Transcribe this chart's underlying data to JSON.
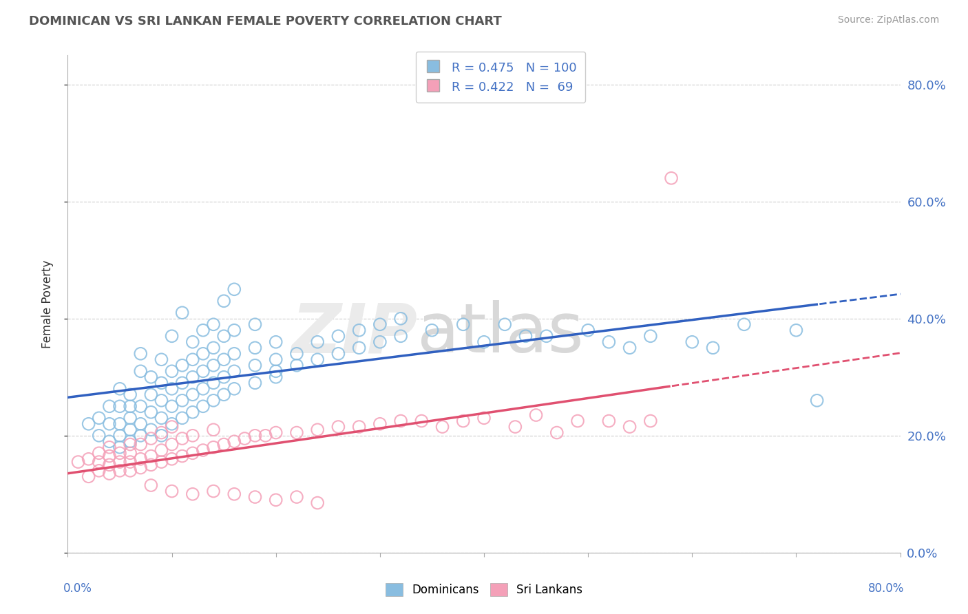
{
  "title": "DOMINICAN VS SRI LANKAN FEMALE POVERTY CORRELATION CHART",
  "source": "Source: ZipAtlas.com",
  "ylabel": "Female Poverty",
  "xlim": [
    0.0,
    0.8
  ],
  "ylim": [
    0.0,
    0.85
  ],
  "dominican_R": 0.475,
  "dominican_N": 100,
  "srilankan_R": 0.422,
  "srilankan_N": 69,
  "dominican_color": "#89bde0",
  "srilankan_color": "#f4a0b8",
  "dominican_line_color": "#3060c0",
  "srilankan_line_color": "#e05070",
  "background_color": "#ffffff",
  "grid_color": "#cccccc",
  "ytick_positions": [
    0.0,
    0.2,
    0.4,
    0.6,
    0.8
  ],
  "ytick_labels_right": [
    "0.0%",
    "20.0%",
    "40.0%",
    "60.0%",
    "80.0%"
  ],
  "dominican_scatter": [
    [
      0.02,
      0.22
    ],
    [
      0.03,
      0.2
    ],
    [
      0.03,
      0.23
    ],
    [
      0.04,
      0.19
    ],
    [
      0.04,
      0.22
    ],
    [
      0.04,
      0.25
    ],
    [
      0.05,
      0.18
    ],
    [
      0.05,
      0.2
    ],
    [
      0.05,
      0.22
    ],
    [
      0.05,
      0.25
    ],
    [
      0.05,
      0.28
    ],
    [
      0.06,
      0.19
    ],
    [
      0.06,
      0.21
    ],
    [
      0.06,
      0.23
    ],
    [
      0.06,
      0.25
    ],
    [
      0.06,
      0.27
    ],
    [
      0.07,
      0.2
    ],
    [
      0.07,
      0.22
    ],
    [
      0.07,
      0.25
    ],
    [
      0.07,
      0.31
    ],
    [
      0.07,
      0.34
    ],
    [
      0.08,
      0.21
    ],
    [
      0.08,
      0.24
    ],
    [
      0.08,
      0.27
    ],
    [
      0.08,
      0.3
    ],
    [
      0.09,
      0.2
    ],
    [
      0.09,
      0.23
    ],
    [
      0.09,
      0.26
    ],
    [
      0.09,
      0.29
    ],
    [
      0.09,
      0.33
    ],
    [
      0.1,
      0.22
    ],
    [
      0.1,
      0.25
    ],
    [
      0.1,
      0.28
    ],
    [
      0.1,
      0.31
    ],
    [
      0.1,
      0.37
    ],
    [
      0.11,
      0.23
    ],
    [
      0.11,
      0.26
    ],
    [
      0.11,
      0.29
    ],
    [
      0.11,
      0.32
    ],
    [
      0.11,
      0.41
    ],
    [
      0.12,
      0.24
    ],
    [
      0.12,
      0.27
    ],
    [
      0.12,
      0.3
    ],
    [
      0.12,
      0.33
    ],
    [
      0.12,
      0.36
    ],
    [
      0.13,
      0.25
    ],
    [
      0.13,
      0.28
    ],
    [
      0.13,
      0.31
    ],
    [
      0.13,
      0.34
    ],
    [
      0.13,
      0.38
    ],
    [
      0.14,
      0.26
    ],
    [
      0.14,
      0.29
    ],
    [
      0.14,
      0.32
    ],
    [
      0.14,
      0.35
    ],
    [
      0.14,
      0.39
    ],
    [
      0.15,
      0.27
    ],
    [
      0.15,
      0.3
    ],
    [
      0.15,
      0.33
    ],
    [
      0.15,
      0.37
    ],
    [
      0.15,
      0.43
    ],
    [
      0.16,
      0.28
    ],
    [
      0.16,
      0.31
    ],
    [
      0.16,
      0.34
    ],
    [
      0.16,
      0.38
    ],
    [
      0.16,
      0.45
    ],
    [
      0.18,
      0.29
    ],
    [
      0.18,
      0.32
    ],
    [
      0.18,
      0.35
    ],
    [
      0.18,
      0.39
    ],
    [
      0.2,
      0.3
    ],
    [
      0.2,
      0.33
    ],
    [
      0.2,
      0.36
    ],
    [
      0.2,
      0.31
    ],
    [
      0.22,
      0.32
    ],
    [
      0.22,
      0.34
    ],
    [
      0.24,
      0.33
    ],
    [
      0.24,
      0.36
    ],
    [
      0.26,
      0.34
    ],
    [
      0.26,
      0.37
    ],
    [
      0.28,
      0.35
    ],
    [
      0.28,
      0.38
    ],
    [
      0.3,
      0.36
    ],
    [
      0.3,
      0.39
    ],
    [
      0.32,
      0.37
    ],
    [
      0.32,
      0.4
    ],
    [
      0.35,
      0.38
    ],
    [
      0.38,
      0.39
    ],
    [
      0.4,
      0.36
    ],
    [
      0.42,
      0.39
    ],
    [
      0.44,
      0.37
    ],
    [
      0.46,
      0.37
    ],
    [
      0.5,
      0.38
    ],
    [
      0.52,
      0.36
    ],
    [
      0.54,
      0.35
    ],
    [
      0.56,
      0.37
    ],
    [
      0.6,
      0.36
    ],
    [
      0.62,
      0.35
    ],
    [
      0.65,
      0.39
    ],
    [
      0.7,
      0.38
    ],
    [
      0.72,
      0.26
    ]
  ],
  "srilankan_scatter": [
    [
      0.01,
      0.155
    ],
    [
      0.02,
      0.13
    ],
    [
      0.02,
      0.16
    ],
    [
      0.03,
      0.14
    ],
    [
      0.03,
      0.155
    ],
    [
      0.03,
      0.17
    ],
    [
      0.04,
      0.135
    ],
    [
      0.04,
      0.15
    ],
    [
      0.04,
      0.165
    ],
    [
      0.04,
      0.18
    ],
    [
      0.05,
      0.14
    ],
    [
      0.05,
      0.155
    ],
    [
      0.05,
      0.17
    ],
    [
      0.06,
      0.14
    ],
    [
      0.06,
      0.155
    ],
    [
      0.06,
      0.17
    ],
    [
      0.06,
      0.185
    ],
    [
      0.07,
      0.145
    ],
    [
      0.07,
      0.16
    ],
    [
      0.07,
      0.185
    ],
    [
      0.08,
      0.15
    ],
    [
      0.08,
      0.165
    ],
    [
      0.08,
      0.195
    ],
    [
      0.09,
      0.155
    ],
    [
      0.09,
      0.175
    ],
    [
      0.09,
      0.205
    ],
    [
      0.1,
      0.16
    ],
    [
      0.1,
      0.185
    ],
    [
      0.1,
      0.215
    ],
    [
      0.11,
      0.165
    ],
    [
      0.11,
      0.195
    ],
    [
      0.12,
      0.17
    ],
    [
      0.12,
      0.2
    ],
    [
      0.13,
      0.175
    ],
    [
      0.14,
      0.18
    ],
    [
      0.14,
      0.21
    ],
    [
      0.15,
      0.185
    ],
    [
      0.16,
      0.19
    ],
    [
      0.17,
      0.195
    ],
    [
      0.18,
      0.2
    ],
    [
      0.19,
      0.2
    ],
    [
      0.2,
      0.205
    ],
    [
      0.22,
      0.205
    ],
    [
      0.24,
      0.21
    ],
    [
      0.26,
      0.215
    ],
    [
      0.28,
      0.215
    ],
    [
      0.3,
      0.22
    ],
    [
      0.32,
      0.225
    ],
    [
      0.34,
      0.225
    ],
    [
      0.36,
      0.215
    ],
    [
      0.38,
      0.225
    ],
    [
      0.4,
      0.23
    ],
    [
      0.43,
      0.215
    ],
    [
      0.45,
      0.235
    ],
    [
      0.47,
      0.205
    ],
    [
      0.49,
      0.225
    ],
    [
      0.52,
      0.225
    ],
    [
      0.54,
      0.215
    ],
    [
      0.56,
      0.225
    ],
    [
      0.58,
      0.64
    ],
    [
      0.08,
      0.115
    ],
    [
      0.1,
      0.105
    ],
    [
      0.12,
      0.1
    ],
    [
      0.14,
      0.105
    ],
    [
      0.16,
      0.1
    ],
    [
      0.18,
      0.095
    ],
    [
      0.2,
      0.09
    ],
    [
      0.22,
      0.095
    ],
    [
      0.24,
      0.085
    ]
  ]
}
